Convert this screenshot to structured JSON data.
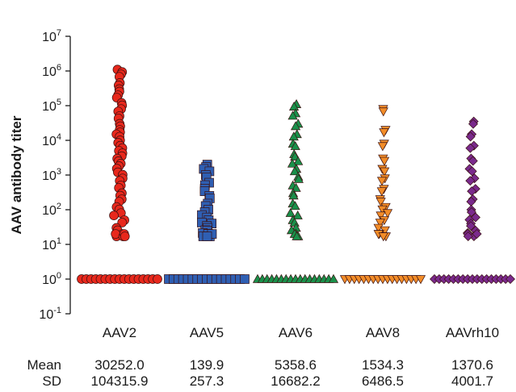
{
  "chart_data": {
    "type": "scatter",
    "ylabel": "AAV antibody titer",
    "yscale": "log",
    "ylim": [
      0.1,
      10000000
    ],
    "y_tick_base": "10",
    "y_tick_exponents": [
      "7",
      "6",
      "5",
      "4",
      "3",
      "2",
      "1",
      "0",
      "-1"
    ],
    "grid": false,
    "categories": [
      "AAV2",
      "AAV5",
      "AAV6",
      "AAV8",
      "AAVrh10"
    ],
    "series": [
      {
        "category": "AAV2",
        "marker": "circle",
        "color": "#e8281c",
        "baseline_value": 1,
        "high_values": [
          1100000,
          800000,
          450000,
          300000,
          200000,
          120000,
          80000,
          50000,
          30000,
          20000,
          15000,
          10000,
          7000,
          5000,
          3500,
          2500,
          1800,
          1200,
          800,
          500,
          300,
          200,
          120,
          80,
          50,
          30,
          20,
          20,
          20
        ]
      },
      {
        "category": "AAV5",
        "marker": "square",
        "color": "#2f5fb3",
        "baseline_value": 1,
        "high_values": [
          2000,
          1500,
          1000,
          600,
          400,
          250,
          150,
          100,
          70,
          50,
          40,
          30,
          25,
          20,
          20,
          20
        ]
      },
      {
        "category": "AAV6",
        "marker": "triangle-up",
        "color": "#1a8f4a",
        "baseline_value": 1,
        "high_values": [
          110000,
          60000,
          30000,
          15000,
          8000,
          4000,
          2500,
          1500,
          900,
          500,
          300,
          150,
          80,
          50,
          30,
          20,
          20
        ]
      },
      {
        "category": "AAV8",
        "marker": "triangle-down",
        "color": "#f28c28",
        "baseline_value": 1,
        "high_values": [
          80000,
          20000,
          8000,
          3000,
          1500,
          800,
          400,
          200,
          120,
          80,
          50,
          30,
          20,
          20
        ]
      },
      {
        "category": "AAVrh10",
        "marker": "diamond",
        "color": "#7a2a8c",
        "baseline_value": 1,
        "high_values": [
          35000,
          15000,
          7000,
          3000,
          1500,
          800,
          400,
          200,
          100,
          60,
          40,
          25,
          20,
          20
        ]
      }
    ],
    "summary": {
      "row_labels": [
        "Mean",
        "SD"
      ],
      "mean": [
        "30252.0",
        "139.9",
        "5358.6",
        "1534.3",
        "1370.6"
      ],
      "sd": [
        "104315.9",
        "257.3",
        "16682.2",
        "6486.5",
        "4001.7"
      ]
    }
  }
}
